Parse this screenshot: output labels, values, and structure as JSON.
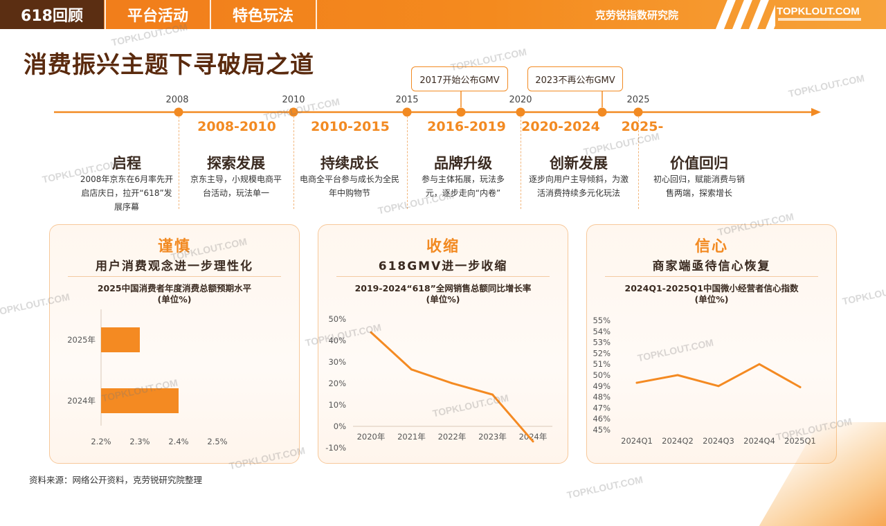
{
  "header": {
    "tabs": [
      {
        "label": "618回顾",
        "active": true
      },
      {
        "label": "平台活动",
        "active": false
      },
      {
        "label": "特色玩法",
        "active": false
      }
    ],
    "institute": "克劳锐指数研究院",
    "brand": "TOPKLOUT.COM"
  },
  "page_title": "消费振兴主题下寻破局之道",
  "watermark": "TOPKLOUT.COM",
  "timeline": {
    "years": [
      "2008",
      "2010",
      "2015",
      "2020",
      "2025"
    ],
    "callouts": [
      "2017开始公布GMV",
      "2023不再公布GMV"
    ],
    "periods": [
      "2008-2010",
      "2010-2015",
      "2016-2019",
      "2020-2024",
      "2025-"
    ],
    "stages": [
      {
        "title": "启程",
        "desc": "2008年京东在6月率先开启店庆日，拉开“618”发展序幕"
      },
      {
        "title": "探索发展",
        "desc": "京东主导，小规模电商平台活动，玩法单一"
      },
      {
        "title": "持续成长",
        "desc": "电商全平台参与成长为全民年中购物节"
      },
      {
        "title": "品牌升级",
        "desc": "参与主体拓展，玩法多元，逐步走向“内卷”"
      },
      {
        "title": "创新发展",
        "desc": "逐步向用户主导倾斜，为激活消费持续多元化玩法"
      },
      {
        "title": "价值回归",
        "desc": "初心回归，赋能消费与销售两端，探索增长"
      }
    ]
  },
  "panels": [
    {
      "title": "谨慎",
      "subtitle": "用户消费观念进一步理性化"
    },
    {
      "title": "收缩",
      "subtitle": "618GMV进一步收缩"
    },
    {
      "title": "信心",
      "subtitle": "商家端亟待信心恢复"
    }
  ],
  "chart_data": [
    {
      "type": "bar",
      "orientation": "horizontal",
      "title": "2025中国消费者年度消费总额预期水平",
      "unit": "(单位%)",
      "categories": [
        "2025年",
        "2024年"
      ],
      "values": [
        2.3,
        2.4
      ],
      "xlim": [
        2.2,
        2.5
      ],
      "xticks": [
        "2.2%",
        "2.3%",
        "2.4%",
        "2.5%"
      ],
      "color": "#f48a22"
    },
    {
      "type": "line",
      "title": "2019-2024“618”全网销售总额同比增长率",
      "unit": "(单位%)",
      "x": [
        "2020年",
        "2021年",
        "2022年",
        "2023年",
        "2024年"
      ],
      "values": [
        43.8,
        26.5,
        20.1,
        14.8,
        -7
      ],
      "ylim": [
        -10,
        50
      ],
      "yticks": [
        "-10%",
        "0%",
        "10%",
        "20%",
        "30%",
        "40%",
        "50%"
      ],
      "color": "#f48a22"
    },
    {
      "type": "line",
      "title": "2024Q1-2025Q1中国微小经营者信心指数",
      "unit": "(单位%)",
      "x": [
        "2024Q1",
        "2024Q2",
        "2024Q3",
        "2024Q4",
        "2025Q1"
      ],
      "values": [
        49.3,
        50.0,
        49.0,
        51.0,
        48.9
      ],
      "ylim": [
        45,
        55
      ],
      "yticks": [
        "45%",
        "46%",
        "47%",
        "48%",
        "49%",
        "50%",
        "51%",
        "52%",
        "53%",
        "54%",
        "55%"
      ],
      "color": "#f48a22"
    }
  ],
  "source": "资料来源：网络公开资料，克劳锐研究院整理"
}
